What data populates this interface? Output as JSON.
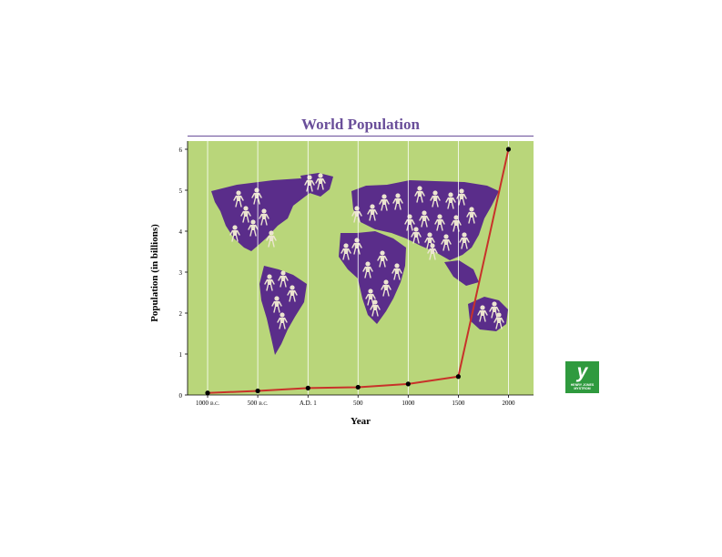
{
  "chart_data": {
    "type": "line",
    "title": "World Population",
    "xlabel": "Year",
    "ylabel": "Population (in billions)",
    "x_tick_labels": [
      {
        "main": "1000",
        "sub": "B.C."
      },
      {
        "main": "500",
        "sub": "B.C."
      },
      {
        "main": "A.D. 1",
        "sub": ""
      },
      {
        "main": "500",
        "sub": ""
      },
      {
        "main": "1000",
        "sub": ""
      },
      {
        "main": "1500",
        "sub": ""
      },
      {
        "main": "2000",
        "sub": ""
      }
    ],
    "x": [
      -1000,
      -500,
      1,
      500,
      1000,
      1500,
      2000
    ],
    "series": [
      {
        "values": [
          0.05,
          0.1,
          0.17,
          0.19,
          0.27,
          0.45,
          6.0
        ]
      }
    ],
    "y_ticks": [
      0,
      1,
      2,
      3,
      4,
      5,
      6
    ],
    "ylim": [
      0,
      6.2
    ],
    "xlim": [
      -1200,
      2250
    ],
    "grid": "vertical",
    "background": "world map"
  },
  "colors": {
    "plot_background": "#b9d67a",
    "map": "#5a2d8a",
    "figures": "#ece5d0",
    "line": "#c8322a",
    "marker": "#000000",
    "title": "#6a4f9a",
    "logo": "#2f9a3e"
  },
  "logo": {
    "glyph": "y",
    "line1": "HENRY JONES",
    "line2": "MYSTROM"
  }
}
